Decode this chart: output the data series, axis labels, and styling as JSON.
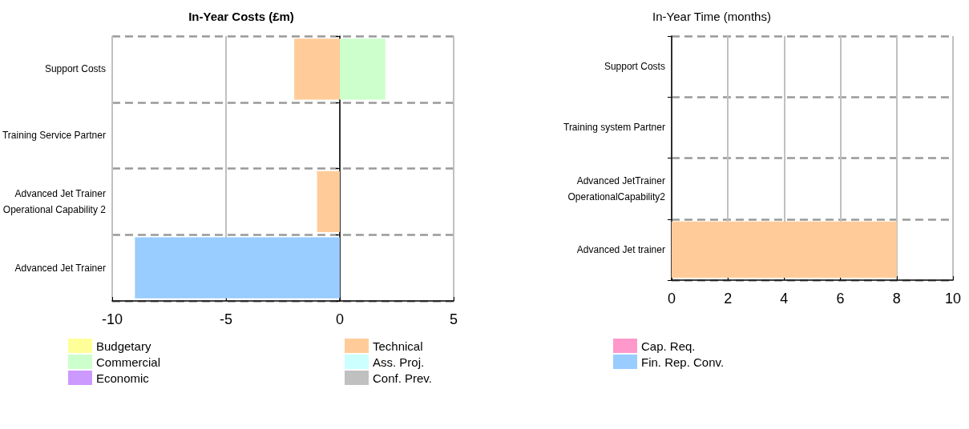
{
  "chart_data": [
    {
      "type": "bar",
      "title": "In-Year Costs (£m)",
      "orientation": "horizontal",
      "stacked": true,
      "grid": true,
      "legend": "bottom",
      "categories": [
        "Support Costs",
        "Training Service Partner",
        "Advanced Jet Trainer\nOperational Capability 2",
        "Advanced Jet Trainer"
      ],
      "xlim": [
        -10,
        5
      ],
      "xticks": [
        -10,
        -5,
        0,
        5
      ],
      "series": [
        {
          "name": "Budgetary",
          "color": "#ffff99",
          "values": [
            null,
            null,
            null,
            null
          ]
        },
        {
          "name": "Commercial",
          "color": "#ccffcc",
          "values": [
            2,
            null,
            null,
            null
          ]
        },
        {
          "name": "Economic",
          "color": "#cc99ff",
          "values": [
            null,
            null,
            null,
            null
          ]
        },
        {
          "name": "Technical",
          "color": "#ffcc99",
          "values": [
            -2,
            null,
            -1,
            null
          ]
        },
        {
          "name": "Ass. Proj.",
          "color": "#ccffff",
          "values": [
            null,
            null,
            null,
            null
          ]
        },
        {
          "name": "Conf. Prev.",
          "color": "#c0c0c0",
          "values": [
            null,
            null,
            null,
            null
          ]
        },
        {
          "name": "Cap. Req.",
          "color": "#ff99cc",
          "values": [
            null,
            null,
            null,
            null
          ]
        },
        {
          "name": "Fin. Rep. Conv.",
          "color": "#99ccff",
          "values": [
            null,
            null,
            null,
            -9
          ]
        }
      ]
    },
    {
      "type": "bar",
      "title": "In-Year Time (months)",
      "orientation": "horizontal",
      "stacked": true,
      "grid": true,
      "categories": [
        "Support Costs",
        "Training system Partner",
        "Advanced JetTrainer\nOperationalCapability2",
        "Advanced Jet trainer"
      ],
      "xlim": [
        0,
        10
      ],
      "xticks": [
        0,
        2,
        4,
        6,
        8,
        10
      ],
      "series": [
        {
          "color": "#ffcc99",
          "values": [
            null,
            null,
            null,
            8
          ]
        }
      ]
    }
  ]
}
